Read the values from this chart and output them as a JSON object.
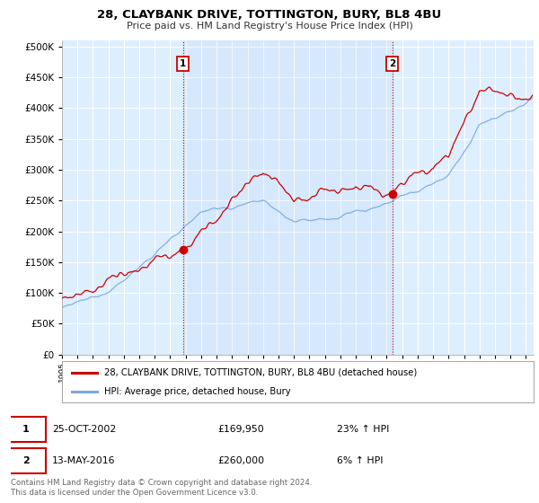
{
  "title": "28, CLAYBANK DRIVE, TOTTINGTON, BURY, BL8 4BU",
  "subtitle": "Price paid vs. HM Land Registry's House Price Index (HPI)",
  "ytick_values": [
    0,
    50000,
    100000,
    150000,
    200000,
    250000,
    300000,
    350000,
    400000,
    450000,
    500000
  ],
  "ylim": [
    0,
    510000
  ],
  "xlim_start": 1995.0,
  "xlim_end": 2025.5,
  "xtick_years": [
    1995,
    1996,
    1997,
    1998,
    1999,
    2000,
    2001,
    2002,
    2003,
    2004,
    2005,
    2006,
    2007,
    2008,
    2009,
    2010,
    2011,
    2012,
    2013,
    2014,
    2015,
    2016,
    2017,
    2018,
    2019,
    2020,
    2021,
    2022,
    2023,
    2024,
    2025
  ],
  "purchase1_x": 2002.82,
  "purchase1_y": 169950,
  "purchase2_x": 2016.37,
  "purchase2_y": 260000,
  "red_line_color": "#cc0000",
  "blue_line_color": "#7aaadd",
  "plot_bg_color": "#ddeeff",
  "grid_color": "#bbccdd",
  "legend_label_red": "28, CLAYBANK DRIVE, TOTTINGTON, BURY, BL8 4BU (detached house)",
  "legend_label_blue": "HPI: Average price, detached house, Bury",
  "footer": "Contains HM Land Registry data © Crown copyright and database right 2024.\nThis data is licensed under the Open Government Licence v3.0."
}
